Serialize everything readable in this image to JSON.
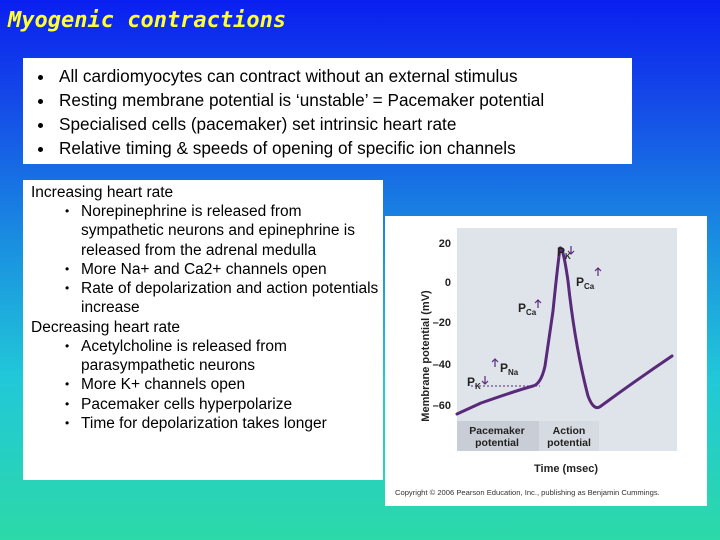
{
  "slide": {
    "title": "Myogenic contractions"
  },
  "intro_bullets": [
    "All cardiomyocytes can contract without an external stimulus",
    "Resting membrane potential is ‘unstable’ = Pacemaker potential",
    "Specialised cells (pacemaker) set intrinsic heart rate",
    "Relative timing & speeds of opening of specific ion channels"
  ],
  "increase": {
    "heading": "Increasing heart rate",
    "items": [
      "Norepinephrine is released from sympathetic neurons and epinephrine is released from the adrenal medulla",
      "More Na+ and Ca2+ channels open",
      "Rate of depolarization and action potentials increase"
    ]
  },
  "decrease": {
    "heading": "Decreasing heart rate",
    "items": [
      "Acetylcholine is released from parasympathetic neurons",
      "More K+ channels open",
      "Pacemaker cells hyperpolarize",
      "Time for depolarization takes longer"
    ]
  },
  "figure": {
    "ylabel": "Membrane potential (mV)",
    "xlabel": "Time (msec)",
    "yticks": [
      "20",
      "0",
      "–20",
      "–40",
      "–60"
    ],
    "labels": {
      "pk_top": "P",
      "pk_top_sub": "K",
      "pca_right": "P",
      "pca_right_sub": "Ca",
      "pca_mid": "P",
      "pca_mid_sub": "Ca",
      "pna": "P",
      "pna_sub": "Na",
      "pk_low": "P",
      "pk_low_sub": "K"
    },
    "phase_pacemaker_1": "Pacemaker",
    "phase_pacemaker_2": "potential",
    "phase_action_1": "Action",
    "phase_action_2": "potential",
    "copyright": "Copyright © 2006 Pearson Education, Inc., publishing as Benjamin Cummings."
  }
}
